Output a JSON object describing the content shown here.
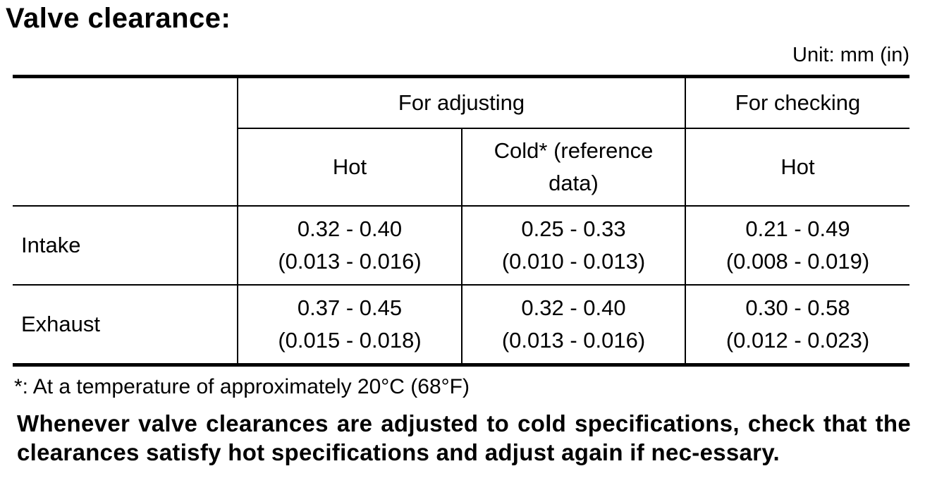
{
  "title": "Valve clearance:",
  "unit": "Unit: mm (in)",
  "table": {
    "group_headers": {
      "for_adjusting": "For adjusting",
      "for_checking": "For checking"
    },
    "sub_headers": {
      "adjusting_hot": "Hot",
      "adjusting_cold_line1": "Cold* (reference",
      "adjusting_cold_line2": "data)",
      "checking_hot": "Hot"
    },
    "rows": [
      {
        "label": "Intake",
        "adjusting_hot": [
          "0.32 - 0.40",
          "(0.013 - 0.016)"
        ],
        "adjusting_cold": [
          "0.25 - 0.33",
          "(0.010 - 0.013)"
        ],
        "checking_hot": [
          "0.21 - 0.49",
          "(0.008 - 0.019)"
        ]
      },
      {
        "label": "Exhaust",
        "adjusting_hot": [
          "0.37 - 0.45",
          "(0.015 - 0.018)"
        ],
        "adjusting_cold": [
          "0.32 - 0.40",
          "(0.013 - 0.016)"
        ],
        "checking_hot": [
          "0.30 - 0.58",
          "(0.012 - 0.023)"
        ]
      }
    ]
  },
  "footnote": "*: At a temperature of approximately 20°C (68°F)",
  "note": "Whenever valve clearances are adjusted to cold specifications, check that the clearances satisfy hot specifications and adjust again if nec-essary."
}
